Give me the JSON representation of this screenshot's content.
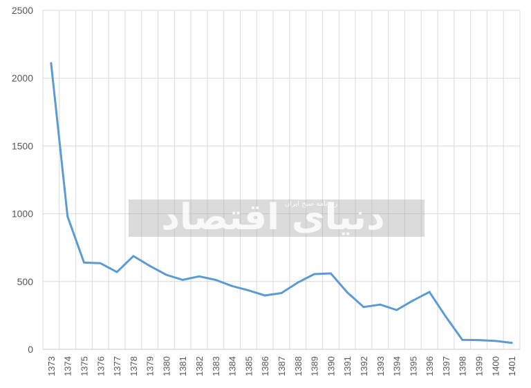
{
  "chart_data": {
    "type": "line",
    "categories": [
      "1373",
      "1374",
      "1375",
      "1376",
      "1377",
      "1378",
      "1379",
      "1380",
      "1381",
      "1382",
      "1383",
      "1384",
      "1385",
      "1386",
      "1387",
      "1388",
      "1389",
      "1390",
      "1391",
      "1392",
      "1393",
      "1394",
      "1395",
      "1396",
      "1397",
      "1398",
      "1399",
      "1400",
      "1401"
    ],
    "series": [
      {
        "values": [
          2110,
          980,
          640,
          635,
          570,
          688,
          615,
          550,
          512,
          538,
          512,
          467,
          435,
          397,
          415,
          493,
          555,
          560,
          420,
          312,
          330,
          290,
          360,
          423,
          240,
          70,
          68,
          62,
          48
        ],
        "color": "#5b9bd5"
      }
    ],
    "ylim": [
      0,
      2500
    ],
    "yticks": [
      "0",
      "500",
      "1000",
      "1500",
      "2000",
      "2500"
    ],
    "grid": true,
    "legend": "none"
  },
  "watermark": {
    "main": "دنیای اقتصاد",
    "sub": "روزنامه صبح ایران"
  }
}
